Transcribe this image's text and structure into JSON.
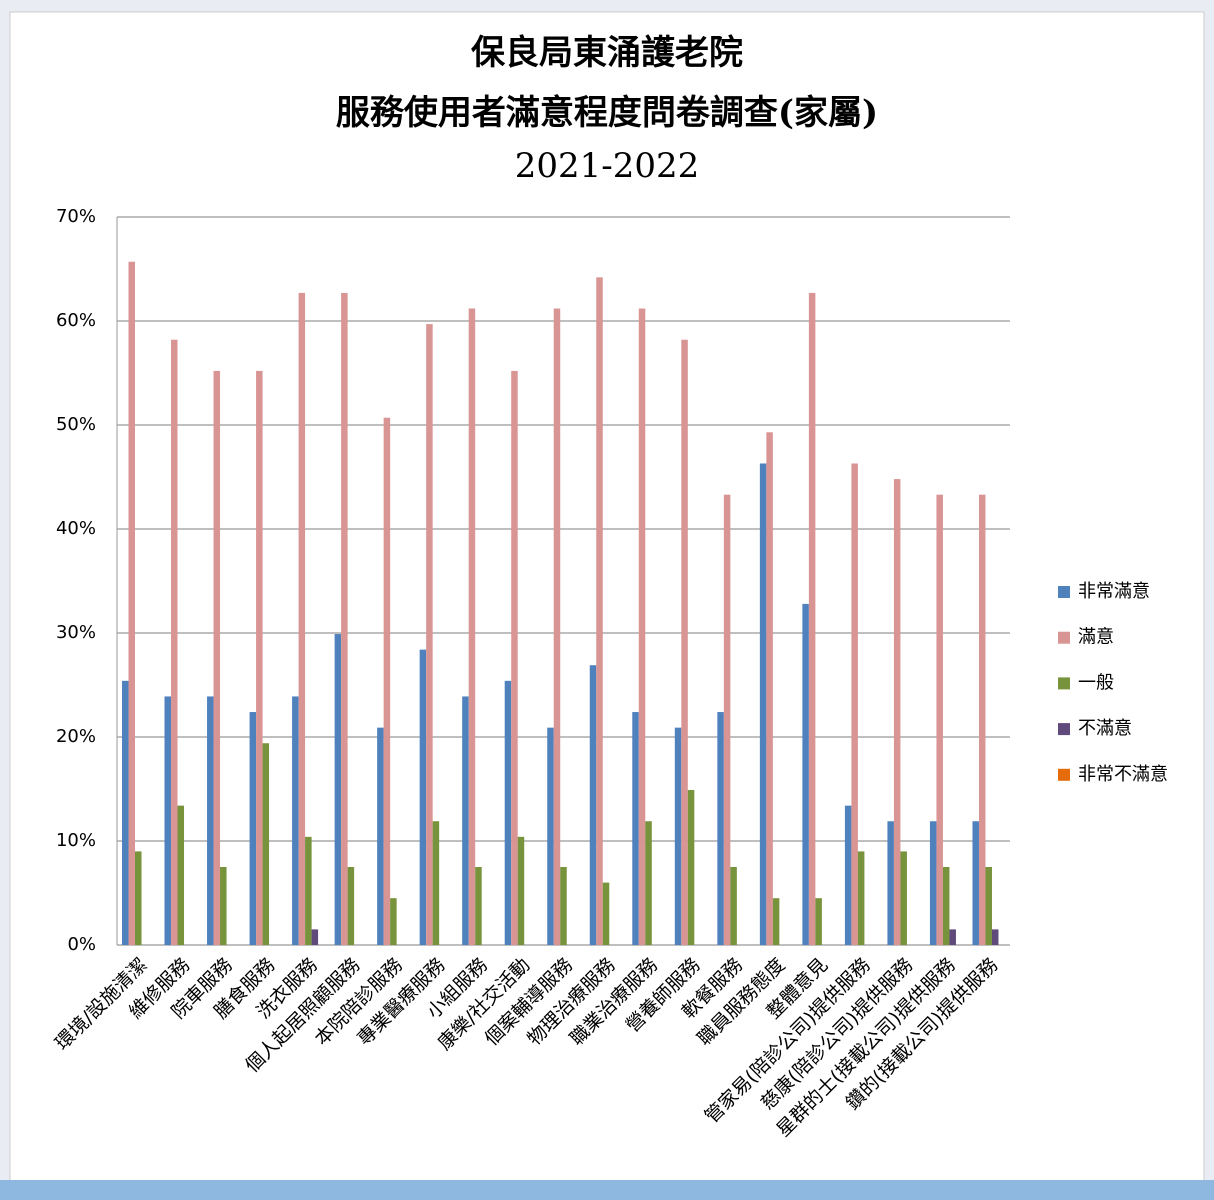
{
  "chart_data": {
    "type": "bar",
    "title": "保良局東涌護老院",
    "subtitle": "服務使用者滿意程度問卷調查(家屬)",
    "period": "2021-2022",
    "categories": [
      "環境/設施清潔",
      "維修服務",
      "院車服務",
      "膳食服務",
      "洗衣服務",
      "個人起居照顧服務",
      "本院陪診服務",
      "專業醫療服務",
      "小組服務",
      "康樂/社交活動",
      "個案輔導服務",
      "物理治療服務",
      "職業治療服務",
      "營養師服務",
      "軟餐服務",
      "職員服務態度",
      "整體意見",
      "管家易(陪診公司)提供服務",
      "慈康(陪診公司)提供服務",
      "星群的士(接載公司)提供服務",
      "鑽的(接載公司)提供服務"
    ],
    "series": [
      {
        "name": "非常滿意",
        "color": "#4f81bd",
        "values": [
          25.4,
          23.9,
          23.9,
          22.4,
          23.9,
          29.9,
          20.9,
          28.4,
          23.9,
          25.4,
          20.9,
          26.9,
          22.4,
          20.9,
          22.4,
          46.3,
          32.8,
          13.4,
          11.9,
          11.9,
          11.9
        ]
      },
      {
        "name": "滿意",
        "color": "#d99594",
        "values": [
          65.7,
          58.2,
          55.2,
          55.2,
          62.7,
          62.7,
          50.7,
          59.7,
          61.2,
          55.2,
          61.2,
          64.2,
          61.2,
          58.2,
          43.3,
          49.3,
          62.7,
          46.3,
          44.8,
          43.3,
          43.3
        ]
      },
      {
        "name": "一般",
        "color": "#77933c",
        "values": [
          9.0,
          13.4,
          7.5,
          19.4,
          10.4,
          7.5,
          4.5,
          11.9,
          7.5,
          10.4,
          7.5,
          6.0,
          11.9,
          14.9,
          7.5,
          4.5,
          4.5,
          9.0,
          9.0,
          7.5,
          7.5
        ]
      },
      {
        "name": "不滿意",
        "color": "#604a7b",
        "values": [
          0,
          0,
          0,
          0,
          1.5,
          0,
          0,
          0,
          0,
          0,
          0,
          0,
          0,
          0,
          0,
          0,
          0,
          0,
          0,
          1.5,
          1.5
        ]
      },
      {
        "name": "非常不滿意",
        "color": "#e46c0a",
        "values": [
          0,
          0,
          0,
          0,
          0,
          0,
          0,
          0,
          0,
          0,
          0,
          0,
          0,
          0,
          0,
          0,
          0,
          0,
          0,
          0,
          0
        ]
      }
    ],
    "ylim": [
      0,
      70
    ],
    "yticks": [
      {
        "value": 0,
        "label": "0%"
      },
      {
        "value": 10,
        "label": "10%"
      },
      {
        "value": 20,
        "label": "20%"
      },
      {
        "value": 30,
        "label": "30%"
      },
      {
        "value": 40,
        "label": "40%"
      },
      {
        "value": 50,
        "label": "50%"
      },
      {
        "value": 60,
        "label": "60%"
      },
      {
        "value": 70,
        "label": "70%"
      }
    ],
    "grid": true,
    "legend": "right"
  }
}
